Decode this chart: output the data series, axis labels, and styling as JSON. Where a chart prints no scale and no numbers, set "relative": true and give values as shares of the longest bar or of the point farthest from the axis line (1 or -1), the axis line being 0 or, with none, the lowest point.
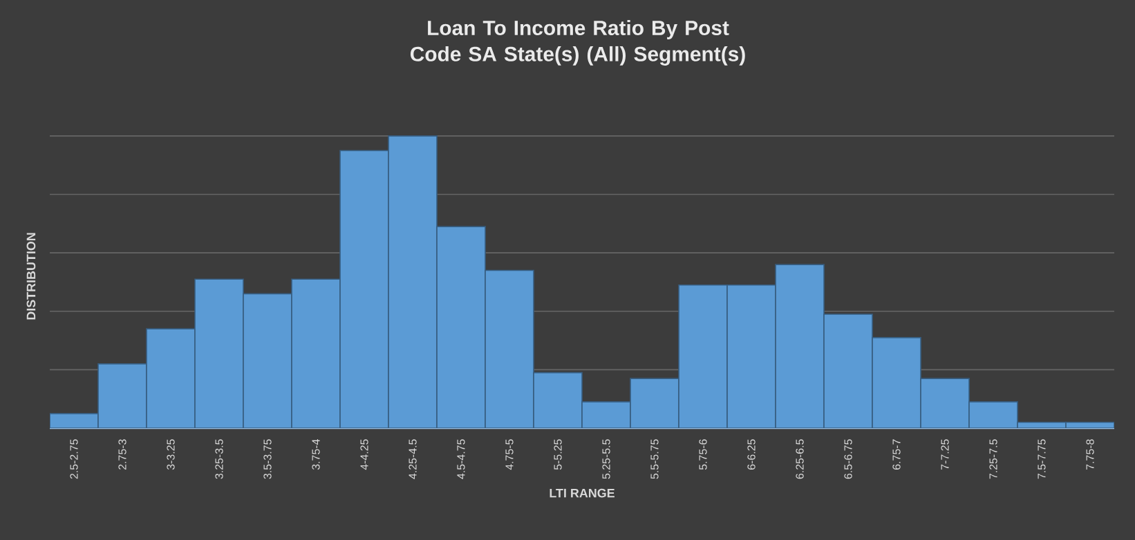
{
  "chart_data": {
    "type": "bar",
    "title": "Loan To Income Ratio By Post Code SA State(s) (All) Segment(s)",
    "xlabel": "LTI RANGE",
    "ylabel": "DISTRIBUTION",
    "categories": [
      "2.5-2.75",
      "2.75-3",
      "3-3.25",
      "3.25-3.5",
      "3.5-3.75",
      "3.75-4",
      "4-4.25",
      "4.25-4.5",
      "4.5-4.75",
      "4.75-5",
      "5-5.25",
      "5.25-5.5",
      "5.5-5.75",
      "5.75-6",
      "6-6.25",
      "6.25-6.5",
      "6.5-6.75",
      "6.75-7",
      "7-7.25",
      "7.25-7.5",
      "7.5-7.75",
      "7.75-8"
    ],
    "values": [
      0.05,
      0.22,
      0.34,
      0.51,
      0.46,
      0.51,
      0.95,
      1,
      0.69,
      0.54,
      0.19,
      0.09,
      0.17,
      0.49,
      0.49,
      0.56,
      0.39,
      0.31,
      0.17,
      0.09,
      0.02,
      0.02
    ],
    "color": "#5b9bd5",
    "relative": true,
    "grid": "y"
  }
}
